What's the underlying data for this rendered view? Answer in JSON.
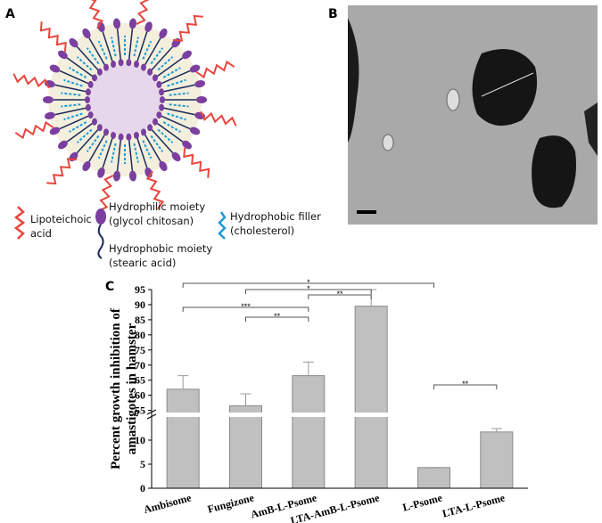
{
  "panels": {
    "a": "A",
    "b": "B",
    "c": "C"
  },
  "legend_a": [
    {
      "lines": [
        "Lipoteichoic",
        "acid"
      ]
    },
    {
      "lines": [
        "Hydrophilic moiety",
        "(glycol chitosan)"
      ]
    },
    {
      "lines": [
        "Hydrophobic moiety",
        "(stearic acid)"
      ]
    },
    {
      "lines": [
        "Hydrophobic filler",
        "(cholesterol)"
      ]
    }
  ],
  "chart_data": {
    "type": "bar",
    "y_label": [
      "Percent growth inhibition of",
      "amastigotes in hamster"
    ],
    "categories": [
      "Ambisome",
      "Fungizone",
      "AmB-L-Psome",
      "LTA-AmB-L-Psome",
      "L-Psome",
      "LTA-L-Psome"
    ],
    "values": [
      62,
      56.5,
      66.5,
      89.5,
      4.3,
      11.7
    ],
    "errors": [
      4.5,
      4,
      4.5,
      5.5,
      0,
      0.7
    ],
    "color": "#c0c0c0",
    "ylim": [
      0,
      95
    ],
    "ybreak": [
      15,
      54
    ],
    "yticks": [
      0,
      5,
      10,
      55,
      60,
      65,
      70,
      75,
      80,
      85,
      90,
      95
    ],
    "significance": [
      {
        "label": "*",
        "from": "Ambisome",
        "to": "L-Psome"
      },
      {
        "label": "*",
        "from": "Fungizone",
        "to": "LTA-AmB-L-Psome"
      },
      {
        "label": "**",
        "from": "AmB-L-Psome",
        "to": "LTA-AmB-L-Psome"
      },
      {
        "label": "***",
        "from": "Ambisome",
        "to": "AmB-L-Psome"
      },
      {
        "label": "**",
        "from": "Fungizone",
        "to": "AmB-L-Psome"
      },
      {
        "label": "**",
        "from": "L-Psome",
        "to": "LTA-L-Psome"
      }
    ]
  }
}
